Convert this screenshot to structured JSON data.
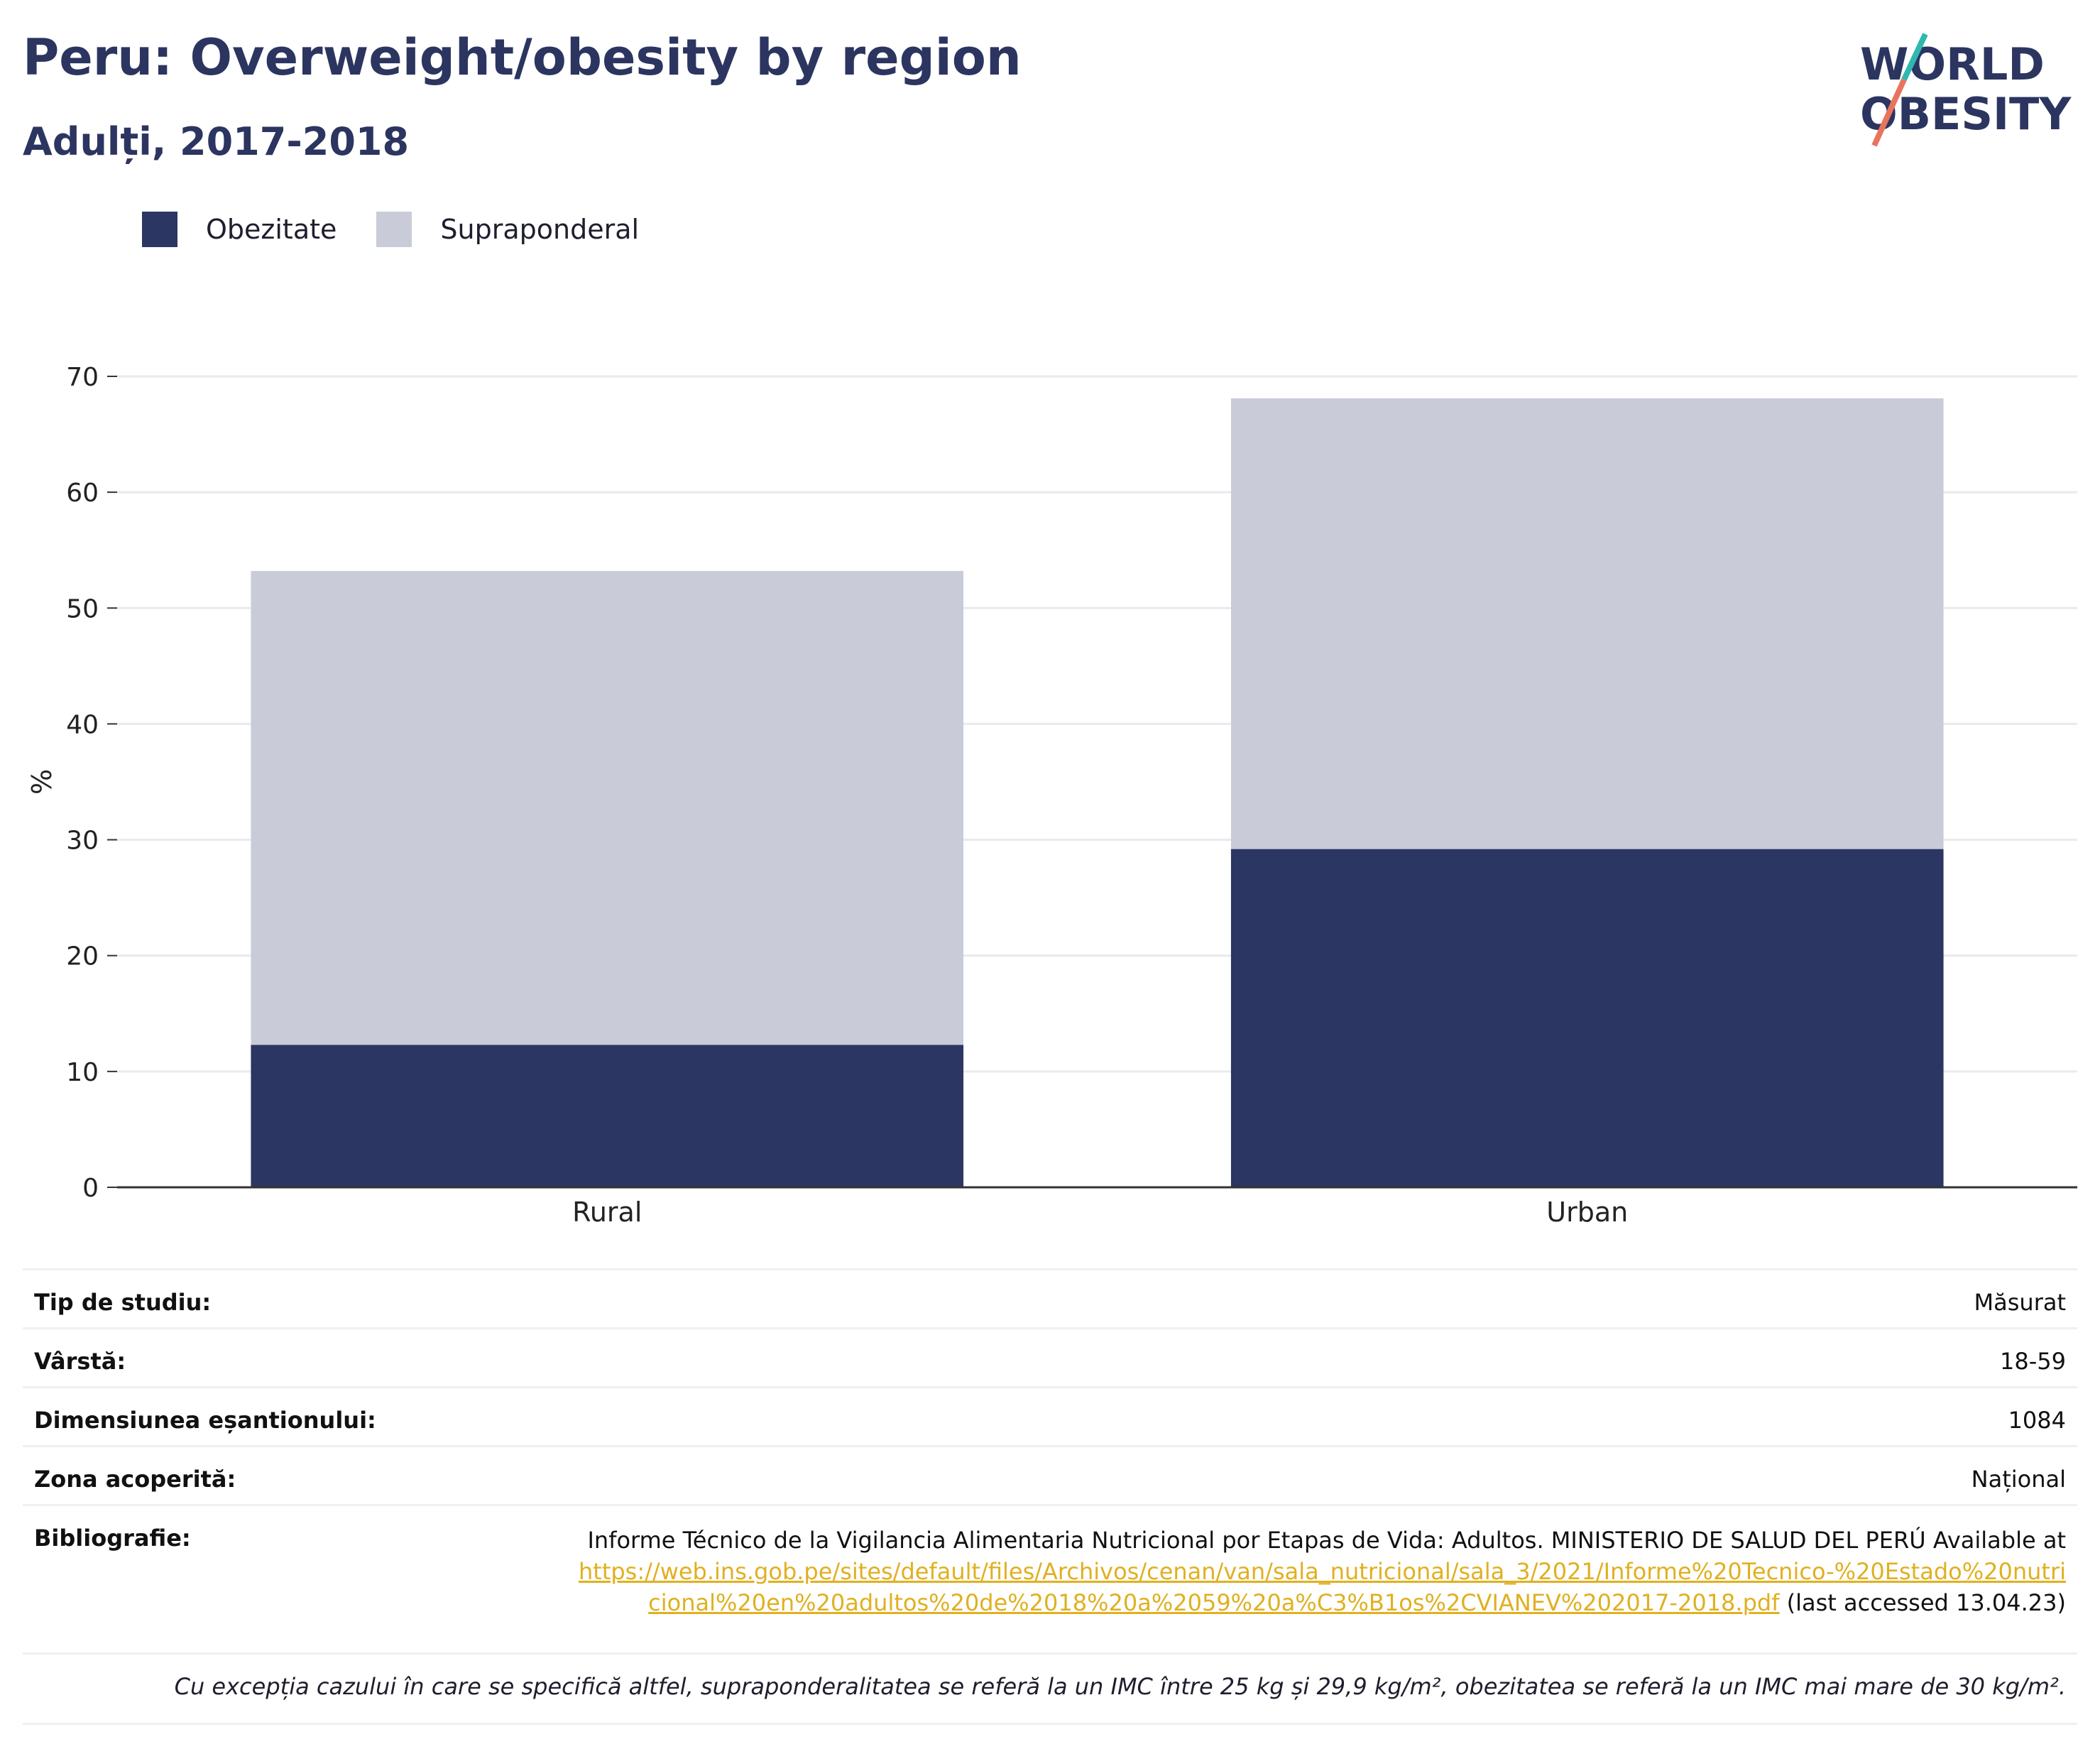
{
  "header": {
    "title": "Peru: Overweight/obesity by region",
    "subtitle": "Adulți, 2017-2018"
  },
  "logo": {
    "line1": "WORLD",
    "line2": "OBESITY"
  },
  "legend": [
    {
      "label": "Obezitate",
      "color": "#2b3663"
    },
    {
      "label": "Supraponderal",
      "color": "#c9ccd8"
    }
  ],
  "chart_data": {
    "type": "bar",
    "stacked": true,
    "categories": [
      "Rural",
      "Urban"
    ],
    "series": [
      {
        "name": "Obezitate",
        "values": [
          12.3,
          29.2
        ],
        "color": "#2b3663"
      },
      {
        "name": "Supraponderal",
        "values": [
          40.9,
          38.9
        ],
        "color": "#c9ccd8"
      }
    ],
    "ylabel": "%",
    "ylim": [
      0,
      70
    ],
    "yticks": [
      0,
      10,
      20,
      30,
      40,
      50,
      60,
      70
    ],
    "grid": true,
    "legend_position": "top-left"
  },
  "meta": {
    "study_type": {
      "label": "Tip de studiu:",
      "value": "Măsurat"
    },
    "age": {
      "label": "Vârstă:",
      "value": "18-59"
    },
    "sample": {
      "label": "Dimensiunea eșantionului:",
      "value": "1084"
    },
    "area": {
      "label": "Zona acoperită:",
      "value": "Național"
    },
    "bibliography": {
      "label": "Bibliografie:",
      "text": "Informe Técnico de la Vigilancia Alimentaria Nutricional por Etapas de Vida: Adultos. MINISTERIO DE SALUD DEL PERÚ Available at",
      "url": "https://web.ins.gob.pe/sites/default/files/Archivos/cenan/van/sala_nutricional/sala_3/2021/Informe%20Tecnico-%20Estado%20nutricional%20en%20adultos%20de%2018%20a%2059%20a%C3%B1os%2CVIANEV%202017-2018.pdf",
      "suffix": "(last accessed 13.04.23)"
    },
    "note": "Cu excepția cazului în care se specifică altfel, supraponderalitatea se referă la un IMC între 25 kg și 29,9 kg/m², obezitatea se referă la un IMC mai mare de 30 kg/m²."
  }
}
